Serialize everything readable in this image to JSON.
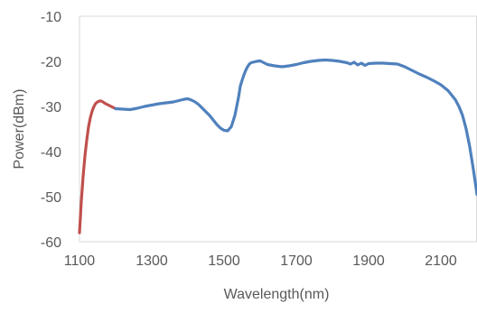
{
  "chart_data": {
    "type": "line",
    "title": "",
    "xlabel": "Wavelength(nm)",
    "ylabel": "Power(dBm)",
    "xlim": [
      1100,
      2200
    ],
    "ylim": [
      -60,
      -10
    ],
    "x_ticks": [
      1100,
      1300,
      1500,
      1700,
      1900,
      2100
    ],
    "x_tick_labels": [
      "1100",
      "1300",
      "1500",
      "1700",
      "1900",
      "2100"
    ],
    "y_ticks": [
      -10,
      -20,
      -30,
      -40,
      -50,
      -60
    ],
    "y_tick_labels": [
      "-10",
      "-20",
      "-30",
      "-40",
      "-50",
      "-60"
    ],
    "grid": false,
    "legend": "none",
    "series": [
      {
        "color": "#c0504d",
        "x": [
          1100,
          1105,
          1110,
          1115,
          1120,
          1125,
          1130,
          1135,
          1140,
          1145,
          1150,
          1155,
          1160,
          1165,
          1170,
          1175,
          1180,
          1185,
          1190,
          1195,
          1200
        ],
        "y": [
          -58.0,
          -51.0,
          -45.5,
          -41.0,
          -37.5,
          -34.5,
          -32.5,
          -31.0,
          -30.0,
          -29.3,
          -29.0,
          -28.8,
          -28.8,
          -29.0,
          -29.3,
          -29.5,
          -29.7,
          -29.9,
          -30.1,
          -30.3,
          -30.5
        ]
      },
      {
        "color": "#4f81bd",
        "x": [
          1200,
          1220,
          1240,
          1260,
          1280,
          1300,
          1320,
          1340,
          1360,
          1370,
          1380,
          1390,
          1400,
          1410,
          1420,
          1430,
          1440,
          1450,
          1460,
          1470,
          1480,
          1490,
          1500,
          1510,
          1520,
          1530,
          1540,
          1545,
          1550,
          1555,
          1560,
          1565,
          1570,
          1575,
          1580,
          1590,
          1600,
          1610,
          1620,
          1640,
          1660,
          1680,
          1700,
          1720,
          1740,
          1760,
          1780,
          1800,
          1820,
          1840,
          1850,
          1860,
          1870,
          1880,
          1890,
          1900,
          1920,
          1940,
          1960,
          1980,
          2000,
          2020,
          2040,
          2060,
          2080,
          2100,
          2120,
          2140,
          2150,
          2160,
          2170,
          2180,
          2190,
          2200
        ],
        "y": [
          -30.5,
          -30.6,
          -30.7,
          -30.4,
          -30.0,
          -29.7,
          -29.4,
          -29.2,
          -29.0,
          -28.8,
          -28.6,
          -28.4,
          -28.3,
          -28.6,
          -29.0,
          -29.6,
          -30.4,
          -31.2,
          -32.0,
          -33.0,
          -34.0,
          -34.8,
          -35.3,
          -35.4,
          -34.5,
          -32.0,
          -28.0,
          -25.5,
          -24.2,
          -23.0,
          -22.0,
          -21.2,
          -20.6,
          -20.3,
          -20.2,
          -20.0,
          -19.9,
          -20.3,
          -20.7,
          -21.0,
          -21.2,
          -21.0,
          -20.7,
          -20.3,
          -20.0,
          -19.8,
          -19.7,
          -19.8,
          -20.0,
          -20.3,
          -20.6,
          -20.2,
          -20.8,
          -20.4,
          -20.9,
          -20.5,
          -20.4,
          -20.4,
          -20.5,
          -20.6,
          -21.2,
          -22.0,
          -22.8,
          -23.5,
          -24.3,
          -25.2,
          -26.5,
          -28.5,
          -30.0,
          -32.0,
          -35.0,
          -39.0,
          -44.0,
          -49.5
        ]
      }
    ]
  }
}
